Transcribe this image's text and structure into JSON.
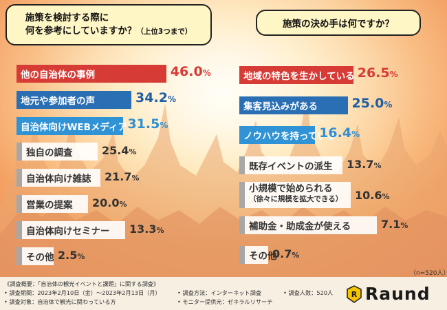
{
  "chart_data": [
    {
      "type": "bar",
      "orientation": "horizontal",
      "title": "施策を検討する際に何を参考にしていますか？（上位3つまで）",
      "title_lines": [
        "施策を検討する際に",
        "何を参考にしていますか？",
        "（上位3つまで）"
      ],
      "categories": [
        "他の自治体の事例",
        "地元や参加者の声",
        "自治体向けWEBメディア",
        "独自の調査",
        "自治体向け雑誌",
        "営業の提案",
        "自治体向けセミナー",
        "その他"
      ],
      "values": [
        46.0,
        34.2,
        31.5,
        25.4,
        21.7,
        20.0,
        13.3,
        2.5
      ],
      "value_labels": [
        "46.0",
        "34.2",
        "31.5",
        "25.4",
        "21.7",
        "20.0",
        "13.3",
        "2.5"
      ],
      "unit": "%",
      "highlight_colors": [
        "#d63b35",
        "#2a6fb4",
        "#2f93d6",
        "#a7a7a7",
        "#a7a7a7",
        "#a7a7a7",
        "#a7a7a7",
        "#a7a7a7"
      ]
    },
    {
      "type": "bar",
      "orientation": "horizontal",
      "title": "施策の決め手は何ですか？",
      "categories": [
        "地域の特色を生かしている",
        "集客見込みがある",
        "ノウハウを持っている",
        "既存イベントの派生",
        "小規模で始められる（徐々に規模を拡大できる）",
        "補助金・助成金が使える",
        "その他"
      ],
      "category_lines": [
        [
          "地域の特色を生かしている"
        ],
        [
          "集客見込みがある"
        ],
        [
          "ノウハウを持っている"
        ],
        [
          "既存イベントの派生"
        ],
        [
          "小規模で始められる",
          "（徐々に規模を拡大できる）"
        ],
        [
          "補助金・助成金が使える"
        ],
        [
          "その他"
        ]
      ],
      "values": [
        26.5,
        25.0,
        16.4,
        13.7,
        10.6,
        7.1,
        0.7
      ],
      "value_labels": [
        "26.5",
        "25.0",
        "16.4",
        "13.7",
        "10.6",
        "7.1",
        "0.7"
      ],
      "unit": "%",
      "highlight_colors": [
        "#d63b35",
        "#2a6fb4",
        "#2f93d6",
        "#a7a7a7",
        "#a7a7a7",
        "#a7a7a7",
        "#a7a7a7"
      ]
    }
  ],
  "sample_size": "（n=520人）",
  "footer": {
    "survey_overview": "《調査概要：「自治体の観光イベントと課題」に関する調査》",
    "survey_period": "• 調査期間：2023年2月10日（金）〜2023年2月13日（月）",
    "survey_target": "• 調査対象：自治体で観光に関わっている方",
    "survey_method": "• 調査方法：インターネット調査",
    "survey_monitor": "• モニター提供元：ゼネラルリサーチ",
    "survey_count": "• 調査人数：520人"
  },
  "logo": {
    "name": "Raund",
    "color": "#f5c400"
  }
}
